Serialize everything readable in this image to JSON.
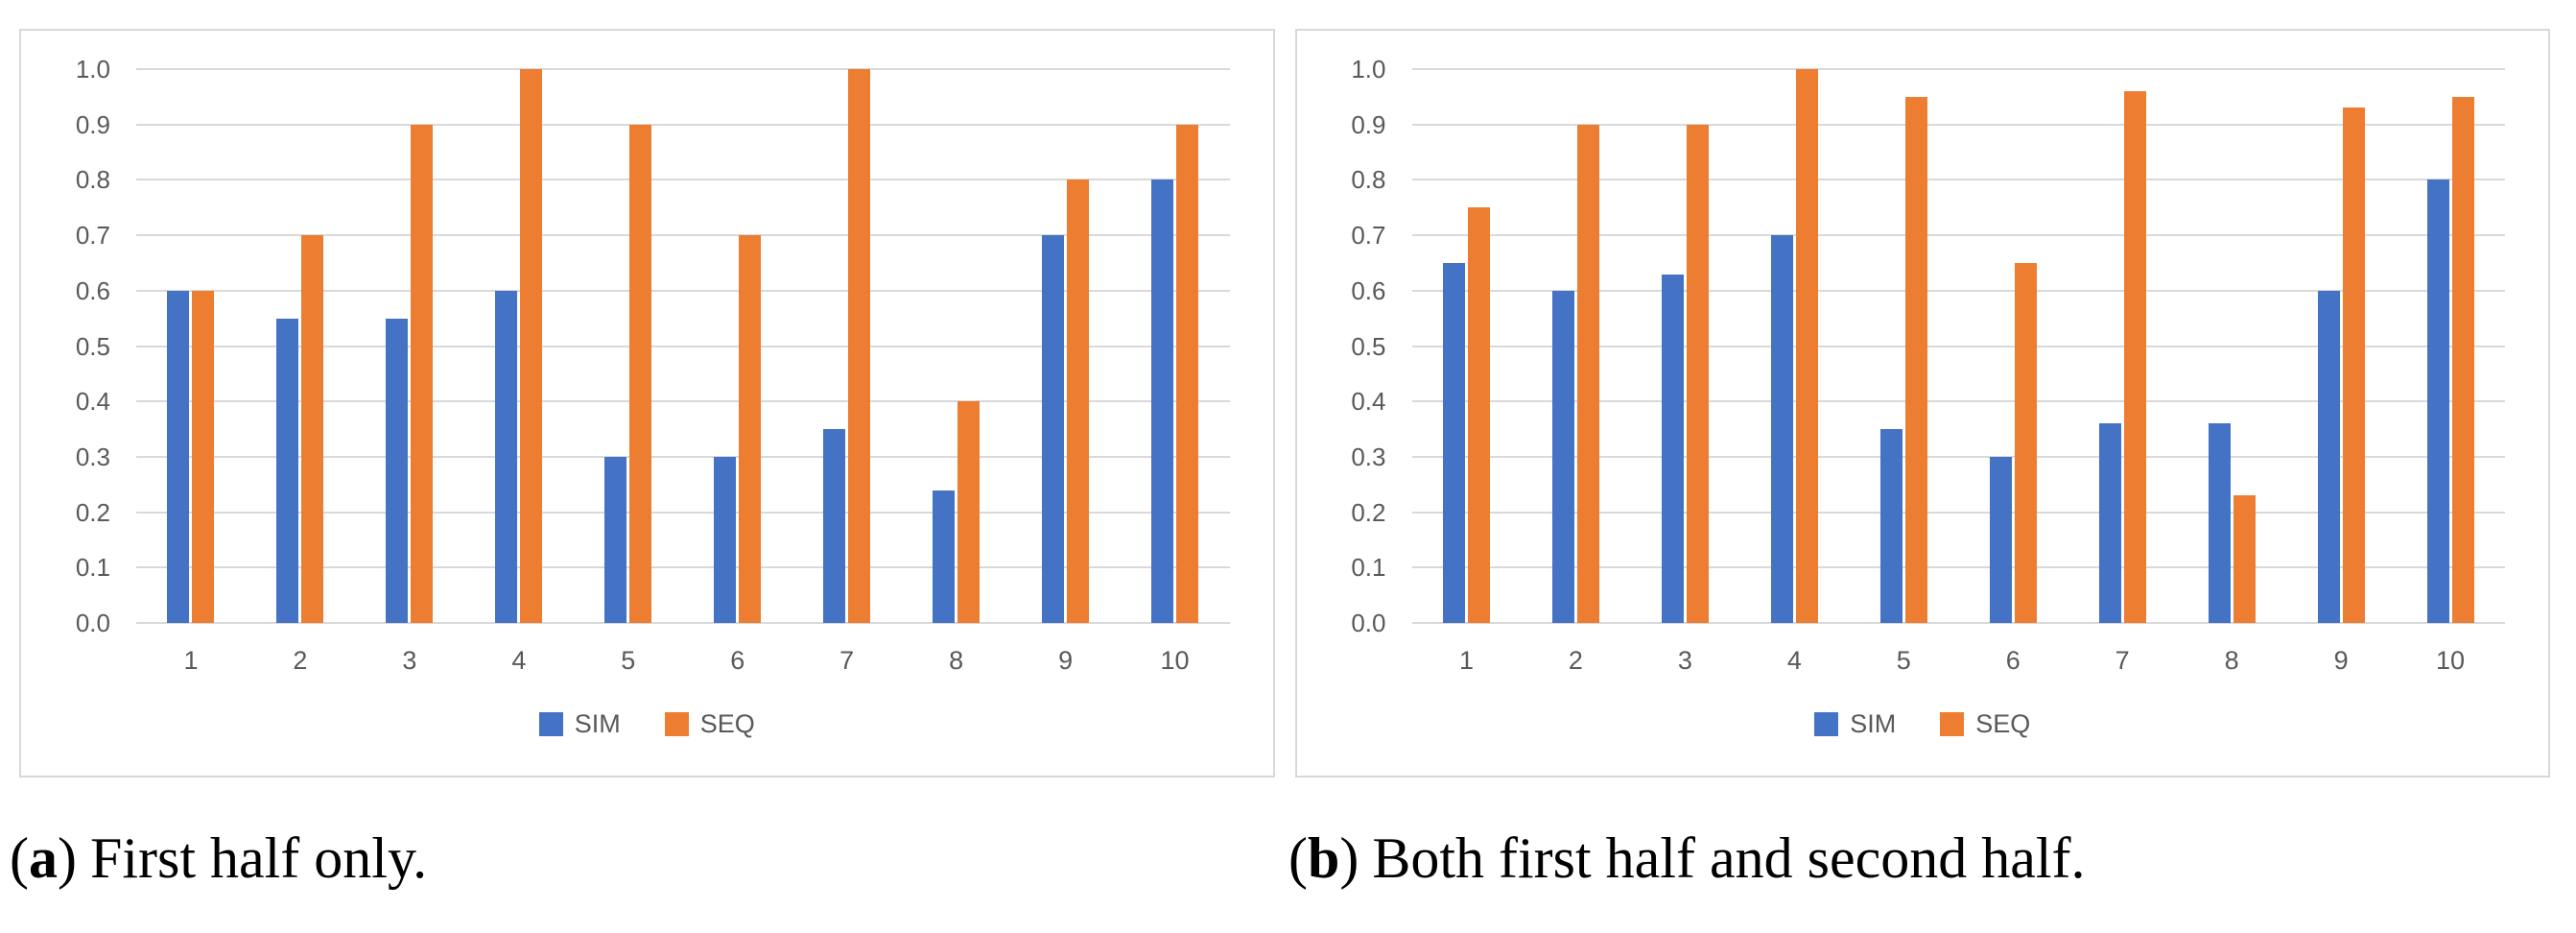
{
  "colors": {
    "sim_blue": "#4472C4",
    "seq_orange": "#ED7D31",
    "gridline": "#D9D9D9",
    "panel_border": "#D8D8D8",
    "tick_text": "#595959"
  },
  "chart_data": [
    {
      "type": "bar",
      "title": "",
      "xlabel": "",
      "ylabel": "",
      "categories": [
        "1",
        "2",
        "3",
        "4",
        "5",
        "6",
        "7",
        "8",
        "9",
        "10"
      ],
      "series": [
        {
          "name": "SIM",
          "color": "#4472C4",
          "values": [
            0.6,
            0.55,
            0.55,
            0.6,
            0.3,
            0.3,
            0.35,
            0.24,
            0.7,
            0.8
          ]
        },
        {
          "name": "SEQ",
          "color": "#ED7D31",
          "values": [
            0.6,
            0.7,
            0.9,
            1.0,
            0.9,
            0.7,
            1.0,
            0.4,
            0.8,
            0.9
          ]
        }
      ],
      "ylim": [
        0.0,
        1.0
      ],
      "yticks": [
        "0.0",
        "0.1",
        "0.2",
        "0.3",
        "0.4",
        "0.5",
        "0.6",
        "0.7",
        "0.8",
        "0.9",
        "1.0"
      ],
      "grid": true,
      "legend_position": "bottom",
      "caption": {
        "open": "(",
        "marker": "a",
        "close": ")",
        "text": "First half only."
      }
    },
    {
      "type": "bar",
      "title": "",
      "xlabel": "",
      "ylabel": "",
      "categories": [
        "1",
        "2",
        "3",
        "4",
        "5",
        "6",
        "7",
        "8",
        "9",
        "10"
      ],
      "series": [
        {
          "name": "SIM",
          "color": "#4472C4",
          "values": [
            0.65,
            0.6,
            0.63,
            0.7,
            0.35,
            0.3,
            0.36,
            0.36,
            0.6,
            0.8
          ]
        },
        {
          "name": "SEQ",
          "color": "#ED7D31",
          "values": [
            0.75,
            0.9,
            0.9,
            1.0,
            0.95,
            0.65,
            0.96,
            0.23,
            0.93,
            0.95
          ]
        }
      ],
      "ylim": [
        0.0,
        1.0
      ],
      "yticks": [
        "0.0",
        "0.1",
        "0.2",
        "0.3",
        "0.4",
        "0.5",
        "0.6",
        "0.7",
        "0.8",
        "0.9",
        "1.0"
      ],
      "grid": true,
      "legend_position": "bottom",
      "caption": {
        "open": "(",
        "marker": "b",
        "close": ")",
        "text": "Both first half and second half."
      }
    }
  ]
}
